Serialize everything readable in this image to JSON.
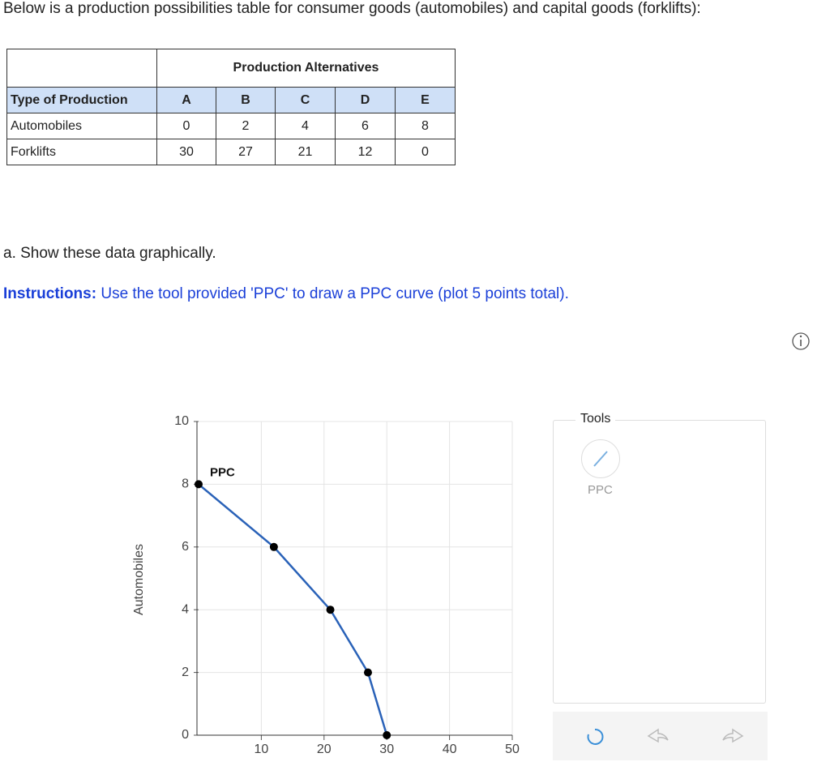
{
  "intro": "Below is a production possibilities table for consumer goods (automobiles) and capital goods (forklifts):",
  "table": {
    "group_header": "Production Alternatives",
    "columns": [
      "Type of Production",
      "A",
      "B",
      "C",
      "D",
      "E"
    ],
    "rows": [
      [
        "Automobiles",
        0,
        2,
        4,
        6,
        8
      ],
      [
        "Forklifts",
        30,
        27,
        21,
        12,
        0
      ]
    ]
  },
  "question": "a. Show these data graphically.",
  "instructions": {
    "label": "Instructions:",
    "text": "Use the tool provided 'PPC' to draw a PPC curve (plot 5 points total)."
  },
  "chart_data": {
    "type": "line",
    "y_label": "Automobiles",
    "x": [
      0,
      12,
      21,
      27,
      30
    ],
    "series": [
      {
        "name": "PPC",
        "color": "#2a62b8",
        "values": [
          8,
          6,
          4,
          2,
          0
        ]
      }
    ],
    "xlim": [
      0,
      50
    ],
    "ylim": [
      0,
      10
    ],
    "xticks": [
      10,
      20,
      30,
      40,
      50
    ],
    "yticks": [
      0,
      2,
      4,
      6,
      8,
      10
    ],
    "grid": true
  },
  "tools": {
    "title": "Tools",
    "items": [
      "PPC"
    ]
  }
}
